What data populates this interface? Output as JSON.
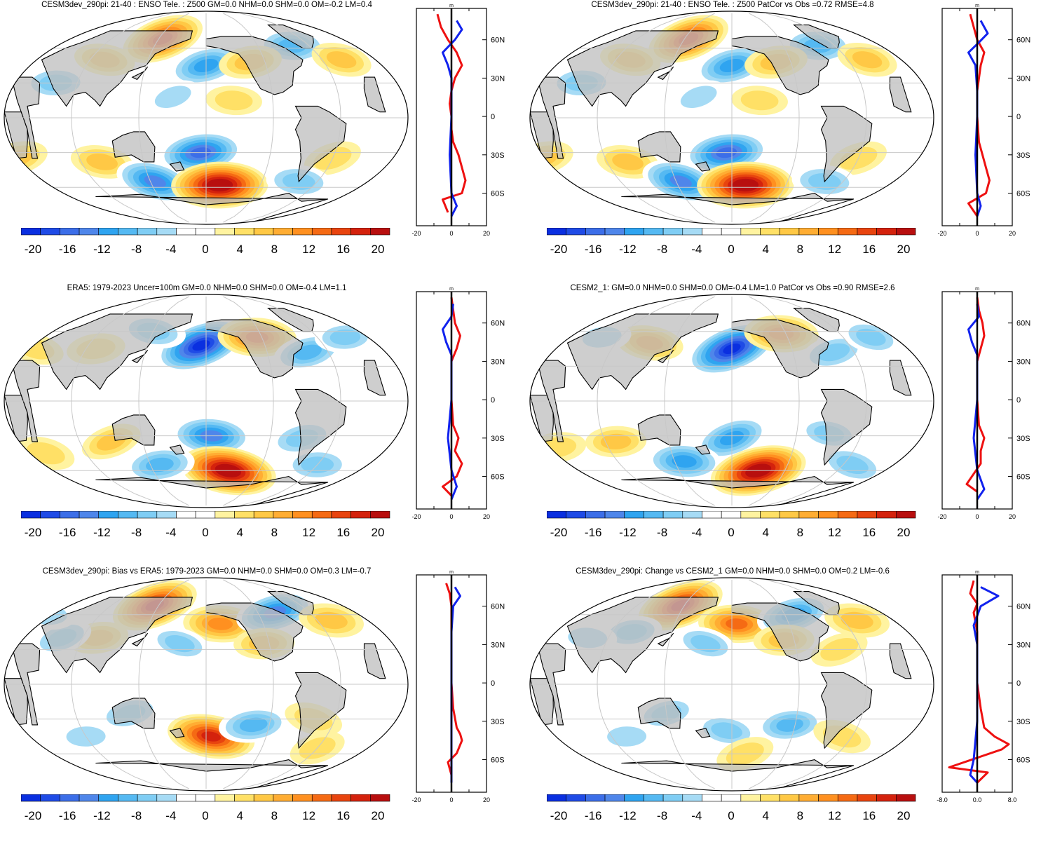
{
  "colorbar": {
    "labels": [
      "-20",
      "-16",
      "-12",
      "-8",
      "-4",
      "0",
      "4",
      "8",
      "12",
      "16",
      "20"
    ],
    "colors": [
      "#0a2fe0",
      "#1f4be6",
      "#3c6ee8",
      "#4f86ea",
      "#2fa4f0",
      "#55b9f2",
      "#7fcdf4",
      "#a6dbf5",
      "#ffffff",
      "#ffffff",
      "#fff3a0",
      "#ffe066",
      "#ffc845",
      "#ffad33",
      "#ff9020",
      "#f56a14",
      "#e8440f",
      "#d4220d",
      "#b80f0f"
    ]
  },
  "zonal": {
    "lat_labels": [
      "60N",
      "30N",
      "0",
      "30S",
      "60S"
    ],
    "unit": "m"
  },
  "panels": [
    {
      "title": "CESM3dev_290pi: 21-40 : ENSO Tele. : Z500 GM=0.0 NHM=0.0 SHM=0.0 OM=-0.2 LM=0.4",
      "x_ticks": [
        "-20",
        "0",
        "20"
      ],
      "blobs": [
        {
          "lon": 145,
          "lat": 68,
          "val": 16
        },
        {
          "lon": 300,
          "lat": 62,
          "val": -10
        },
        {
          "lon": 200,
          "lat": 45,
          "val": -12
        },
        {
          "lon": 95,
          "lat": 50,
          "val": 6
        },
        {
          "lon": 245,
          "lat": 48,
          "val": 7
        },
        {
          "lon": 340,
          "lat": 50,
          "val": 6
        },
        {
          "lon": 60,
          "lat": 30,
          "val": -8
        },
        {
          "lon": 170,
          "lat": 18,
          "val": -4
        },
        {
          "lon": 225,
          "lat": 15,
          "val": 4
        },
        {
          "lon": 20,
          "lat": -35,
          "val": 7
        },
        {
          "lon": 100,
          "lat": -38,
          "val": 7
        },
        {
          "lon": 195,
          "lat": -30,
          "val": -16
        },
        {
          "lon": 145,
          "lat": -55,
          "val": -14
        },
        {
          "lon": 215,
          "lat": -58,
          "val": 22
        },
        {
          "lon": 320,
          "lat": -35,
          "val": 5
        },
        {
          "lon": 300,
          "lat": -55,
          "val": -8
        }
      ]
    },
    {
      "title": "CESM3dev_290pi: 21-40 : ENSO Tele. : Z500 PatCor vs Obs =0.72 RMSE=4.8",
      "x_ticks": [
        "-20",
        "0",
        "20"
      ],
      "blobs": [
        {
          "lon": 145,
          "lat": 68,
          "val": 16
        },
        {
          "lon": 300,
          "lat": 62,
          "val": -10
        },
        {
          "lon": 200,
          "lat": 45,
          "val": -12
        },
        {
          "lon": 95,
          "lat": 50,
          "val": 6
        },
        {
          "lon": 245,
          "lat": 48,
          "val": 7
        },
        {
          "lon": 340,
          "lat": 50,
          "val": 6
        },
        {
          "lon": 60,
          "lat": 30,
          "val": -8
        },
        {
          "lon": 170,
          "lat": 18,
          "val": -4
        },
        {
          "lon": 225,
          "lat": 15,
          "val": 4
        },
        {
          "lon": 20,
          "lat": -35,
          "val": 7
        },
        {
          "lon": 100,
          "lat": -38,
          "val": 7
        },
        {
          "lon": 195,
          "lat": -30,
          "val": -16
        },
        {
          "lon": 145,
          "lat": -55,
          "val": -14
        },
        {
          "lon": 215,
          "lat": -58,
          "val": 22
        },
        {
          "lon": 320,
          "lat": -35,
          "val": 5
        },
        {
          "lon": 300,
          "lat": -55,
          "val": -8
        }
      ]
    },
    {
      "title": "ERA5: 1979-2023 Uncer=100m GM=0.0 NHM=0.0 SHM=0.0 OM=-0.4 LM=1.1",
      "x_ticks": [
        "-20",
        "0",
        "20"
      ],
      "blobs": [
        {
          "lon": 195,
          "lat": 48,
          "val": -20
        },
        {
          "lon": 255,
          "lat": 55,
          "val": 14
        },
        {
          "lon": 300,
          "lat": 42,
          "val": -10
        },
        {
          "lon": 140,
          "lat": 60,
          "val": -8
        },
        {
          "lon": 90,
          "lat": 45,
          "val": 5
        },
        {
          "lon": 30,
          "lat": 45,
          "val": 4
        },
        {
          "lon": 350,
          "lat": 55,
          "val": -6
        },
        {
          "lon": 110,
          "lat": -35,
          "val": 6
        },
        {
          "lon": 205,
          "lat": -30,
          "val": -14
        },
        {
          "lon": 290,
          "lat": -32,
          "val": -8
        },
        {
          "lon": 225,
          "lat": -60,
          "val": 22
        },
        {
          "lon": 150,
          "lat": -55,
          "val": -10
        },
        {
          "lon": 40,
          "lat": -45,
          "val": 5
        },
        {
          "lon": 320,
          "lat": -55,
          "val": -8
        }
      ]
    },
    {
      "title": "CESM2_1: GM=0.0 NHM=0.0 SHM=0.0 OM=-0.4 LM=1.0 PatCor vs Obs =0.90 RMSE=2.6",
      "x_ticks": [
        "-20",
        "0",
        "20"
      ],
      "blobs": [
        {
          "lon": 200,
          "lat": 45,
          "val": -20
        },
        {
          "lon": 255,
          "lat": 58,
          "val": 12
        },
        {
          "lon": 300,
          "lat": 42,
          "val": -8
        },
        {
          "lon": 115,
          "lat": 50,
          "val": 9
        },
        {
          "lon": 60,
          "lat": 55,
          "val": -5
        },
        {
          "lon": 350,
          "lat": 55,
          "val": -6
        },
        {
          "lon": 90,
          "lat": -35,
          "val": 6
        },
        {
          "lon": 200,
          "lat": -32,
          "val": -12
        },
        {
          "lon": 150,
          "lat": -52,
          "val": -12
        },
        {
          "lon": 230,
          "lat": -60,
          "val": 22
        },
        {
          "lon": 290,
          "lat": -28,
          "val": -6
        },
        {
          "lon": 30,
          "lat": -40,
          "val": 5
        },
        {
          "lon": 330,
          "lat": -55,
          "val": -8
        }
      ]
    },
    {
      "title": "CESM3dev_290pi: Bias vs ERA5: 1979-2023 GM=0.0 NHM=0.0 SHM=0.0 OM=0.3 LM=-0.7",
      "x_ticks": [
        "-20",
        "0",
        "20"
      ],
      "blobs": [
        {
          "lon": 135,
          "lat": 68,
          "val": 18
        },
        {
          "lon": 215,
          "lat": 52,
          "val": 12
        },
        {
          "lon": 280,
          "lat": 62,
          "val": -14
        },
        {
          "lon": 335,
          "lat": 55,
          "val": 8
        },
        {
          "lon": 95,
          "lat": 40,
          "val": 6
        },
        {
          "lon": 175,
          "lat": 35,
          "val": -6
        },
        {
          "lon": 255,
          "lat": 35,
          "val": 6
        },
        {
          "lon": 60,
          "lat": 40,
          "val": -6
        },
        {
          "lon": 20,
          "lat": 60,
          "val": -5
        },
        {
          "lon": 130,
          "lat": -25,
          "val": -7
        },
        {
          "lon": 205,
          "lat": -45,
          "val": 18
        },
        {
          "lon": 245,
          "lat": -35,
          "val": -10
        },
        {
          "lon": 300,
          "lat": -30,
          "val": 5
        },
        {
          "lon": 80,
          "lat": -45,
          "val": -5
        },
        {
          "lon": 320,
          "lat": -55,
          "val": 4
        }
      ]
    },
    {
      "title": "CESM3dev_290pi: Change vs CESM2_1 GM=0.0 NHM=0.0 SHM=0.0 OM=0.2 LM=-0.6",
      "x_ticks": [
        "-8.0",
        "0.0",
        "8.0"
      ],
      "blobs": [
        {
          "lon": 135,
          "lat": 68,
          "val": 18
        },
        {
          "lon": 205,
          "lat": 52,
          "val": 13
        },
        {
          "lon": 270,
          "lat": 60,
          "val": -12
        },
        {
          "lon": 335,
          "lat": 55,
          "val": 8
        },
        {
          "lon": 100,
          "lat": 45,
          "val": -6
        },
        {
          "lon": 175,
          "lat": 35,
          "val": -6
        },
        {
          "lon": 250,
          "lat": 38,
          "val": 6
        },
        {
          "lon": 300,
          "lat": 30,
          "val": 5
        },
        {
          "lon": 60,
          "lat": 40,
          "val": -5
        },
        {
          "lon": 140,
          "lat": -25,
          "val": -6
        },
        {
          "lon": 195,
          "lat": -40,
          "val": -7
        },
        {
          "lon": 255,
          "lat": -35,
          "val": -9
        },
        {
          "lon": 310,
          "lat": -45,
          "val": 5
        },
        {
          "lon": 95,
          "lat": -45,
          "val": -5
        },
        {
          "lon": 215,
          "lat": -60,
          "val": 5
        }
      ]
    }
  ]
}
